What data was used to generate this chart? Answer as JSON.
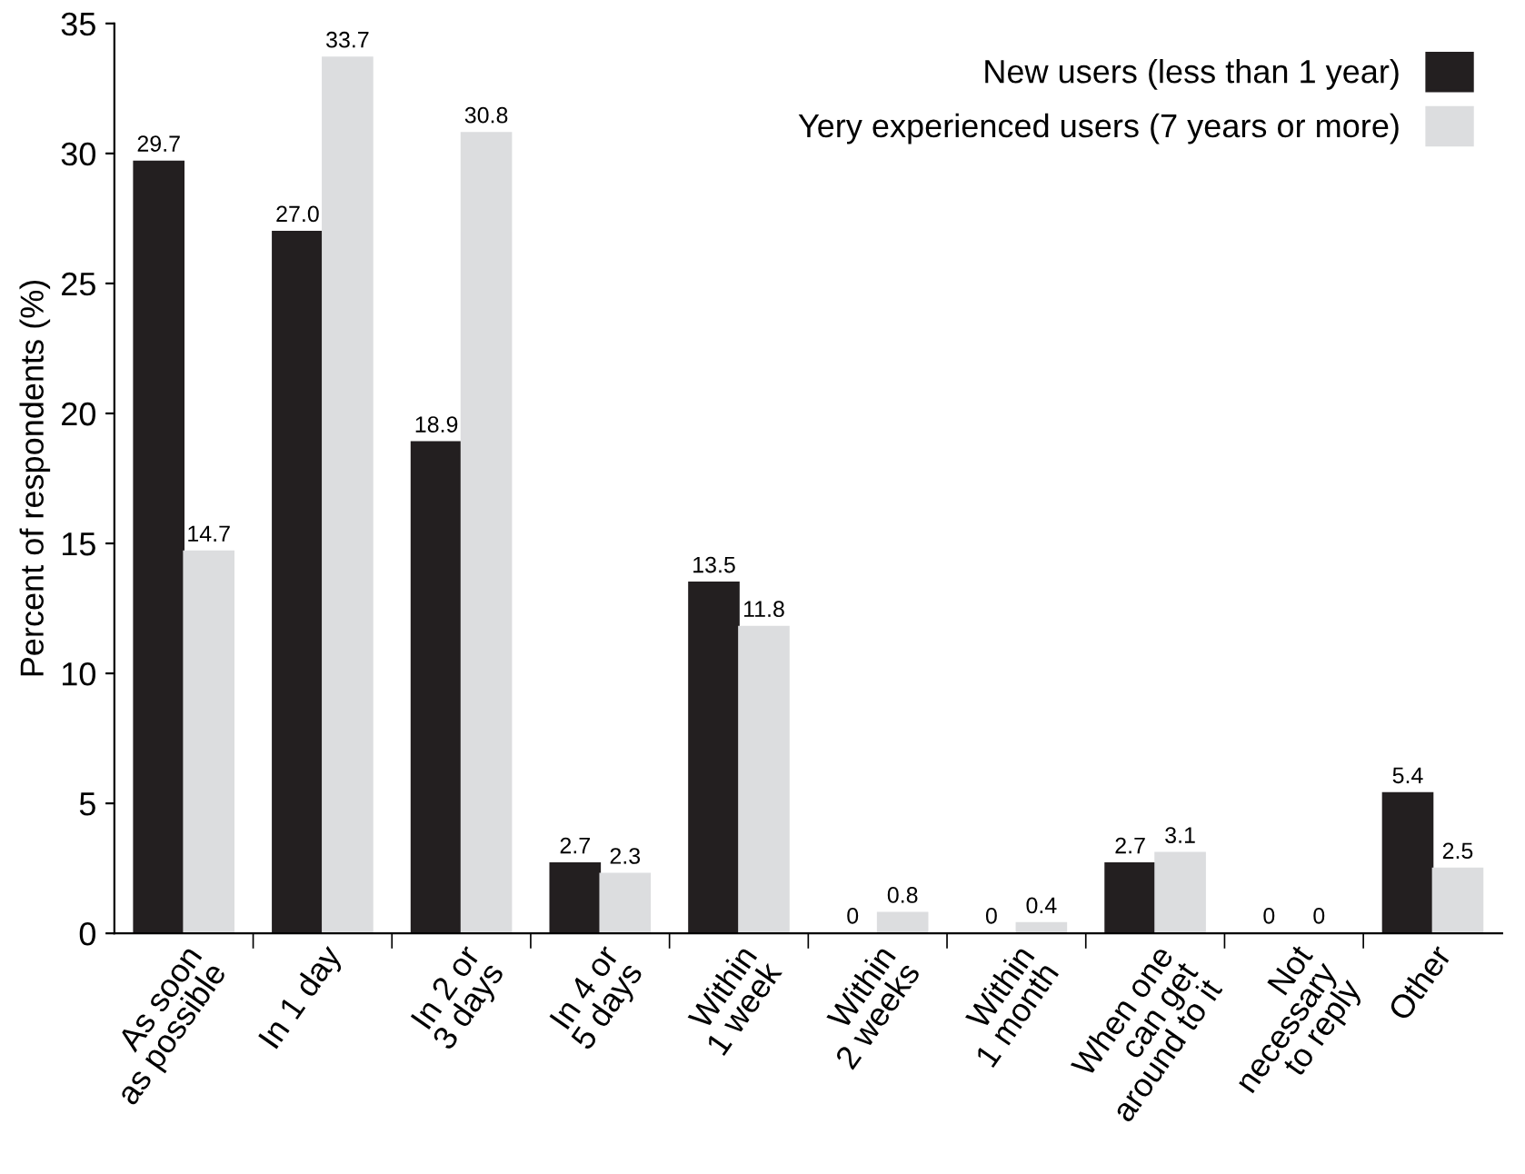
{
  "chart_data": {
    "type": "bar",
    "ylabel": "Percent of respondents (%)",
    "categories": [
      "As soon\nas possible",
      "In 1 day",
      "In 2 or\n3 days",
      "In 4 or\n5 days",
      "Within\n1 week",
      "Within\n2 weeks",
      "Within\n1 month",
      "When one\ncan get\naround to it",
      "Not\nnecessary\nto reply",
      "Other"
    ],
    "series": [
      {
        "name": "New users (less than 1 year)",
        "color": "#231f20",
        "values": [
          29.7,
          27.0,
          18.9,
          2.7,
          13.5,
          0,
          0,
          2.7,
          0,
          5.4
        ],
        "value_labels": [
          "29.7",
          "27.0",
          "18.9",
          "2.7",
          "13.5",
          "0",
          "0",
          "2.7",
          "0",
          "5.4"
        ]
      },
      {
        "name": "Yery experienced users (7 years or more)",
        "color": "#dcdddf",
        "values": [
          14.7,
          33.7,
          30.8,
          2.3,
          11.8,
          0.8,
          0.4,
          3.1,
          0,
          2.5
        ],
        "value_labels": [
          "14.7",
          "33.7",
          "30.8",
          "2.3",
          "11.8",
          "0.8",
          "0.4",
          "3.1",
          "0",
          "2.5"
        ]
      }
    ],
    "ylim": [
      0,
      35
    ],
    "yticks": [
      0,
      5,
      10,
      15,
      20,
      25,
      30,
      35
    ],
    "grid": false,
    "legend": "top right"
  }
}
